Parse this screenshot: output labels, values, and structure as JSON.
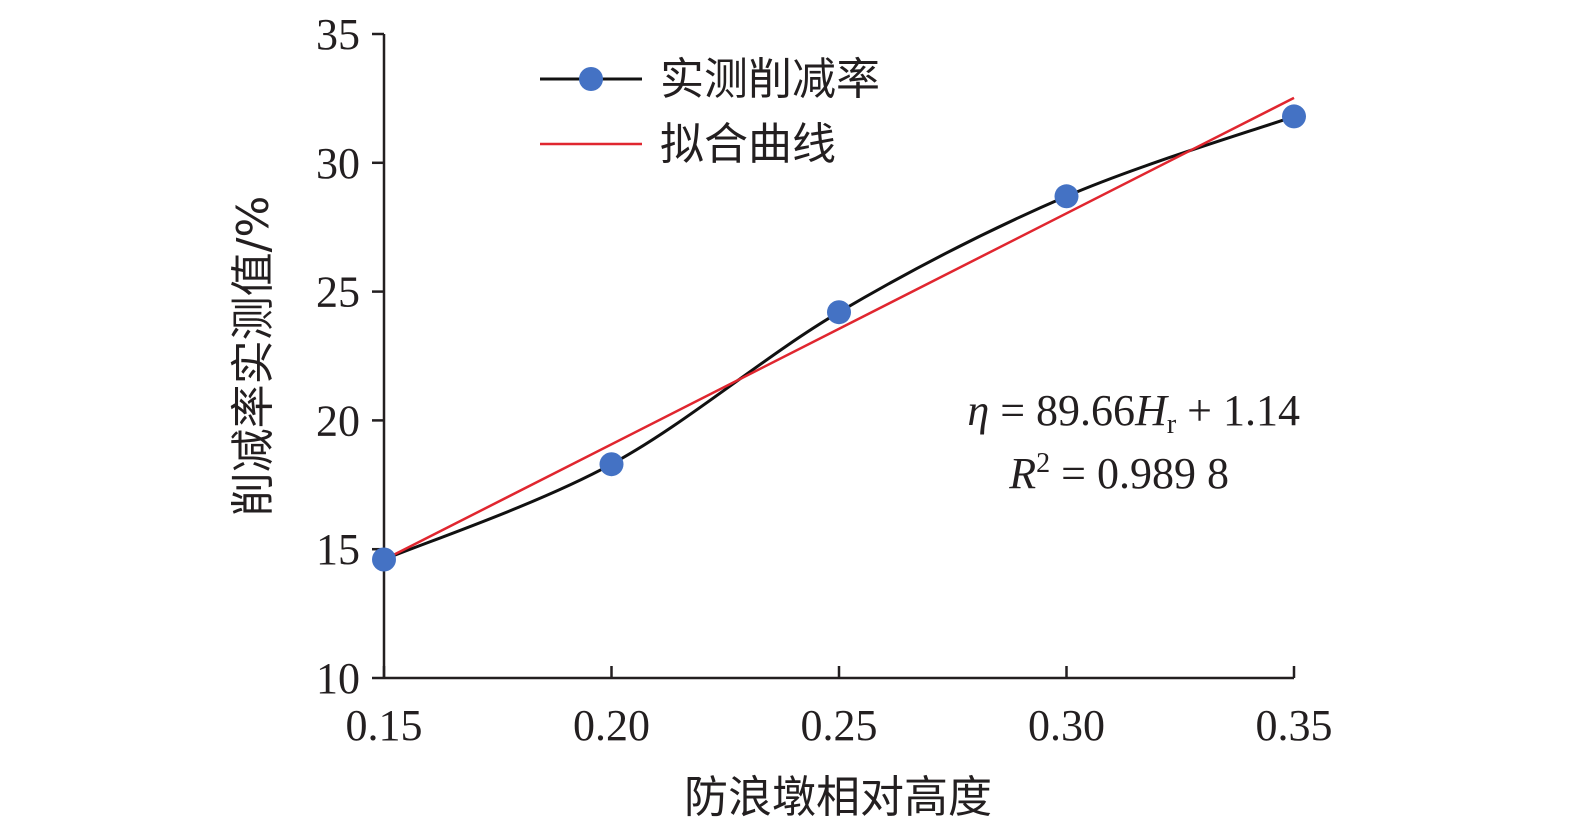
{
  "chart_data": {
    "type": "line",
    "xlabel": "防浪墩相对高度",
    "ylabel": "削减率实测值/%",
    "xlim": [
      0.15,
      0.35
    ],
    "ylim": [
      10,
      35
    ],
    "x_ticks": [
      "0.15",
      "0.20",
      "0.25",
      "0.30",
      "0.35"
    ],
    "y_ticks": [
      "10",
      "15",
      "20",
      "25",
      "30",
      "35"
    ],
    "grid": false,
    "legend_position": "top-left",
    "series": [
      {
        "name": "实测削减率",
        "style": "smoothed line with markers",
        "line_color": "#111111",
        "marker_color": "#4472C4",
        "x": [
          0.15,
          0.2,
          0.25,
          0.3,
          0.35
        ],
        "y": [
          14.6,
          18.3,
          24.2,
          28.7,
          31.8
        ]
      },
      {
        "name": "拟合曲线",
        "style": "line",
        "line_color": "#E0262F",
        "x": [
          0.15,
          0.35
        ],
        "y": [
          14.59,
          32.52
        ]
      }
    ],
    "annotations": {
      "eq_prefix": "η",
      "eq_middle": " = 89.66",
      "eq_var": "H",
      "eq_sub": "r",
      "eq_suffix": " + 1.14",
      "r2_var": "R",
      "r2_sup": "2",
      "r2_value": " = 0.989 8"
    }
  }
}
